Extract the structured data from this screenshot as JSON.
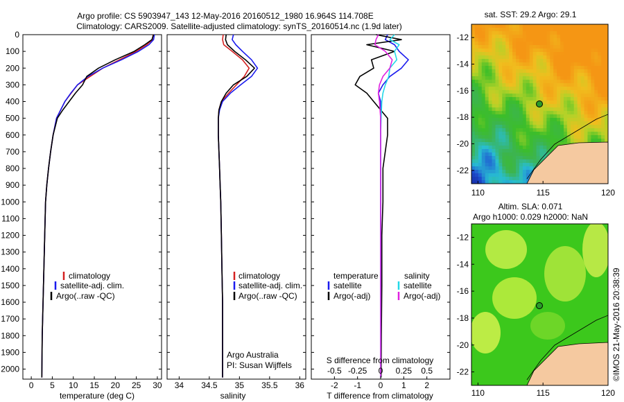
{
  "header": {
    "line1": "Argo profile: CS 5903947_143 12-May-2016 20160512_1980 16.964S 114.708E",
    "line2": "Climatology: CARS2009. Satellite-adjusted climatology: synTS_20160514.nc (1.9d later)"
  },
  "colors": {
    "climatology": "#d42020",
    "satellite": "#1a1aee",
    "argo": "#000000",
    "satellite_salinity": "#22d8e8",
    "argo_adj_salinity": "#e020e0",
    "land": "#f5c9a0"
  },
  "depth_axis": {
    "ticks": [
      "0",
      "100",
      "200",
      "300",
      "400",
      "500",
      "600",
      "700",
      "800",
      "900",
      "1000",
      "1100",
      "1200",
      "1300",
      "1400",
      "1500",
      "1600",
      "1700",
      "1800",
      "1900",
      "2000"
    ],
    "ylim": [
      0,
      2060
    ]
  },
  "panel_temp": {
    "xlabel": "temperature (deg C)",
    "xticks": [
      "0",
      "5",
      "10",
      "15",
      "20",
      "25",
      "30"
    ],
    "legend": [
      "climatology",
      "satellite-adj. clim.",
      "Argo(..raw -QC)"
    ]
  },
  "panel_sal": {
    "xlabel": "salinity",
    "xticks": [
      "34",
      "34.5",
      "35",
      "35.5",
      "36"
    ],
    "legend": [
      "climatology",
      "satellite-adj. clim.",
      "Argo(..raw -QC)"
    ],
    "note1": "Argo Australia",
    "note2": "PI: Susan Wijffels"
  },
  "panel_diff": {
    "xlabel": "T difference from climatology",
    "xticks": [
      "-2",
      "-1",
      "0",
      "1",
      "2"
    ],
    "top_label": "S difference from climatology",
    "top_ticks": [
      "-0.5",
      "-0.25",
      "0",
      "0.25",
      "0.5"
    ],
    "legend_t_title": "temperature",
    "legend_t": [
      "satellite",
      "Argo(-adj)"
    ],
    "legend_s_title": "salinity",
    "legend_s": [
      "satellite",
      "Argo(-adj)"
    ]
  },
  "map_sst": {
    "title": "sat. SST: 29.2  Argo: 29.1",
    "xticks": [
      "110",
      "115",
      "120"
    ],
    "yticks": [
      "-12",
      "-14",
      "-16",
      "-18",
      "-20",
      "-22"
    ]
  },
  "map_sla": {
    "title1": "Altim. SLA: 0.071",
    "title2": "Argo h1000: 0.029  h2000: NaN",
    "xticks": [
      "110",
      "115",
      "120"
    ],
    "yticks": [
      "-12",
      "-14",
      "-16",
      "-18",
      "-20",
      "-22"
    ]
  },
  "credit": "©IMOS 21-May-2016 20:38:39",
  "chart_data": [
    {
      "type": "line",
      "xlabel": "temperature (deg C)",
      "ylabel": "",
      "xlim": [
        -2,
        31
      ],
      "ylim": [
        2060,
        0
      ],
      "series": [
        {
          "name": "climatology",
          "x": [
            29,
            28.8,
            27.5,
            25,
            21,
            17,
            14,
            11,
            9.5,
            8,
            7,
            6,
            5.2,
            4.6,
            4.1,
            3.7,
            3.4,
            3.2,
            3.0,
            2.8,
            2.6,
            2.5
          ],
          "y": [
            0,
            30,
            60,
            100,
            150,
            200,
            250,
            300,
            350,
            400,
            450,
            500,
            600,
            700,
            800,
            900,
            1000,
            1200,
            1400,
            1600,
            1800,
            2050
          ]
        },
        {
          "name": "satellite-adj. clim.",
          "x": [
            29.3,
            29.1,
            28,
            25.5,
            21.5,
            17,
            13.5,
            11,
            9.4,
            8,
            7,
            6,
            5.2,
            4.6,
            4.1,
            3.7,
            3.4,
            3.2,
            3.0,
            2.8,
            2.6,
            2.5
          ],
          "y": [
            0,
            30,
            60,
            100,
            150,
            200,
            250,
            300,
            350,
            400,
            450,
            500,
            600,
            700,
            800,
            900,
            1000,
            1200,
            1400,
            1600,
            1800,
            2050
          ]
        },
        {
          "name": "Argo(..raw -QC)",
          "x": [
            29.1,
            28.7,
            27,
            24.5,
            20,
            16,
            13.2,
            12.2,
            10.5,
            9,
            7.5,
            6.2,
            5.2,
            4.6,
            4.1,
            3.7,
            3.4,
            3.2,
            3.0,
            2.8,
            2.6,
            2.5
          ],
          "y": [
            0,
            30,
            60,
            100,
            150,
            200,
            250,
            300,
            350,
            400,
            450,
            500,
            600,
            700,
            800,
            900,
            1000,
            1200,
            1400,
            1600,
            1800,
            2050
          ]
        }
      ]
    },
    {
      "type": "line",
      "xlabel": "salinity",
      "ylabel": "",
      "xlim": [
        33.8,
        36.1
      ],
      "ylim": [
        2060,
        0
      ],
      "series": [
        {
          "name": "climatology",
          "x": [
            34.73,
            34.72,
            34.74,
            34.88,
            35.05,
            35.16,
            35.08,
            34.95,
            34.82,
            34.7,
            34.66,
            34.65,
            34.65,
            34.66,
            34.67,
            34.68,
            34.69,
            34.7,
            34.71,
            34.72,
            34.72
          ],
          "y": [
            0,
            30,
            60,
            100,
            150,
            200,
            250,
            300,
            350,
            400,
            450,
            500,
            600,
            700,
            800,
            900,
            1000,
            1200,
            1400,
            1600,
            2050
          ]
        },
        {
          "name": "satellite-adj. clim.",
          "x": [
            34.9,
            34.88,
            34.94,
            35.05,
            35.2,
            35.3,
            35.2,
            35.02,
            34.85,
            34.72,
            34.67,
            34.65,
            34.65,
            34.66,
            34.67,
            34.68,
            34.69,
            34.7,
            34.71,
            34.72,
            34.72
          ],
          "y": [
            0,
            30,
            60,
            100,
            150,
            200,
            250,
            300,
            350,
            400,
            450,
            500,
            600,
            700,
            800,
            900,
            1000,
            1200,
            1400,
            1600,
            2050
          ]
        },
        {
          "name": "Argo(..raw -QC)",
          "x": [
            34.78,
            34.77,
            34.8,
            34.92,
            35.1,
            35.25,
            35.12,
            34.9,
            34.78,
            34.7,
            34.66,
            34.65,
            34.65,
            34.66,
            34.67,
            34.68,
            34.69,
            34.7,
            34.71,
            34.72,
            34.72
          ],
          "y": [
            0,
            30,
            60,
            100,
            150,
            200,
            250,
            300,
            350,
            400,
            450,
            500,
            600,
            700,
            800,
            900,
            1000,
            1200,
            1400,
            1600,
            2050
          ]
        }
      ]
    },
    {
      "type": "line",
      "xlabel": "T difference from climatology",
      "ylabel": "",
      "xlim": [
        -3,
        3
      ],
      "ylim": [
        2060,
        0
      ],
      "series": [
        {
          "name": "temperature satellite",
          "x": [
            0.3,
            0.2,
            0.6,
            0.8,
            1.2,
            0.9,
            0.4,
            0.1,
            -0.1,
            0,
            0,
            0,
            0,
            0,
            0,
            0,
            0,
            0
          ],
          "y": [
            0,
            30,
            60,
            100,
            150,
            200,
            250,
            300,
            350,
            400,
            500,
            600,
            800,
            1000,
            1200,
            1500,
            1800,
            2050
          ]
        },
        {
          "name": "temperature Argo(-adj)",
          "x": [
            -0.2,
            0.9,
            -0.6,
            0.6,
            -0.4,
            -0.3,
            -0.9,
            -1.1,
            -0.6,
            -0.3,
            0.3,
            0.3,
            0.1,
            0.1,
            0.05,
            0.05,
            0.03,
            0.02
          ],
          "y": [
            0,
            30,
            60,
            100,
            150,
            200,
            250,
            300,
            350,
            400,
            500,
            600,
            800,
            1000,
            1200,
            1500,
            1800,
            2050
          ]
        },
        {
          "name": "salinity satellite",
          "x": [
            0.6,
            0.4,
            0.8,
            0.6,
            0.7,
            0.4,
            0.35,
            0.2,
            0.1,
            0.05,
            0.02,
            0,
            0,
            0,
            0,
            0,
            0,
            0
          ],
          "y": [
            0,
            30,
            60,
            100,
            150,
            200,
            250,
            300,
            350,
            400,
            500,
            600,
            800,
            1000,
            1200,
            1500,
            1800,
            2050
          ]
        },
        {
          "name": "salinity Argo(-adj)",
          "x": [
            -0.1,
            -0.2,
            -0.25,
            0.2,
            0.5,
            0.4,
            0.1,
            -0.05,
            -0.1,
            -0.05,
            0,
            0,
            0,
            0,
            0,
            0,
            0,
            0
          ],
          "y": [
            0,
            30,
            60,
            100,
            150,
            200,
            250,
            300,
            350,
            400,
            500,
            600,
            800,
            1000,
            1200,
            1500,
            1800,
            2050
          ]
        }
      ]
    }
  ]
}
